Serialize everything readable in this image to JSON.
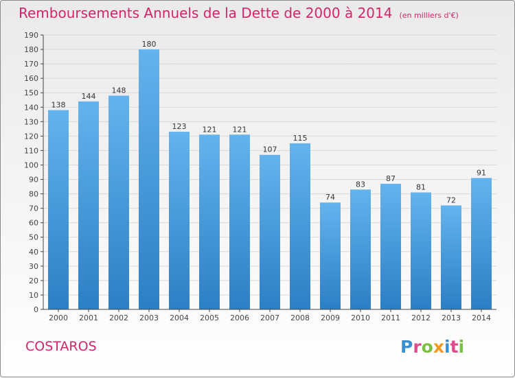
{
  "title": "Remboursements Annuels de la Dette de 2000 à 2014",
  "subtitle": "(en milliers d'€)",
  "commune": "COSTAROS",
  "logo": {
    "letters": [
      "P",
      "r",
      "o",
      "x",
      "i",
      "t",
      "i"
    ],
    "colors": [
      "#3a8fd0",
      "#e24a8c",
      "#7ac143",
      "#f29a20",
      "#3a8fd0",
      "#e24a8c",
      "#7ac143"
    ]
  },
  "colors": {
    "bar_top": "#63b3ee",
    "bar_bottom": "#2d7fc4",
    "title": "#d4246a"
  },
  "chart_data": {
    "type": "bar",
    "title": "Remboursements Annuels de la Dette de 2000 à 2014",
    "categories": [
      "2000",
      "2001",
      "2002",
      "2003",
      "2004",
      "2005",
      "2006",
      "2007",
      "2008",
      "2009",
      "2010",
      "2011",
      "2012",
      "2013",
      "2014"
    ],
    "values": [
      138,
      144,
      148,
      180,
      123,
      121,
      121,
      107,
      115,
      74,
      83,
      87,
      81,
      72,
      91
    ],
    "value_labels": [
      "138",
      "144",
      "148",
      "180",
      "123",
      "121",
      "121",
      "107",
      "115",
      "74",
      "83",
      "87",
      "81",
      "72",
      "91"
    ],
    "yticks": [
      "0",
      "10",
      "20",
      "30",
      "40",
      "50",
      "60",
      "70",
      "80",
      "90",
      "100",
      "110",
      "120",
      "130",
      "140",
      "150",
      "160",
      "170",
      "180",
      "190"
    ],
    "ylim": [
      0,
      190
    ],
    "grid": true,
    "legend": "none"
  }
}
